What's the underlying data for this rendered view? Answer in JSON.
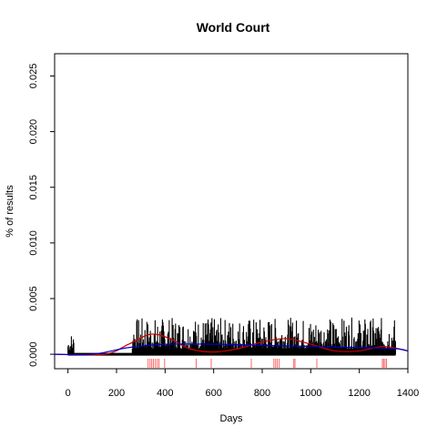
{
  "chart_data": {
    "type": "bar",
    "title": "World Court",
    "xlabel": "Days",
    "ylabel": "% of results",
    "xlim": [
      -55,
      1400
    ],
    "ylim": [
      -0.0013,
      0.027
    ],
    "x_ticks": [
      0,
      200,
      400,
      600,
      800,
      1000,
      1200,
      1400
    ],
    "x_tick_labels": [
      "0",
      "200",
      "400",
      "600",
      "800",
      "1000",
      "1200",
      "1400"
    ],
    "y_ticks": [
      0.0,
      0.005,
      0.01,
      0.015,
      0.02,
      0.025
    ],
    "y_tick_labels": [
      "0.000",
      "0.005",
      "0.010",
      "0.015",
      "0.020",
      "0.025"
    ],
    "grid": false,
    "legend": "none",
    "bar_clusters": [
      {
        "x_start": 0,
        "x_end": 25,
        "max": 0.002
      },
      {
        "x_start": 265,
        "x_end": 1350,
        "max": 0.0033
      }
    ],
    "series": [
      {
        "color": "#cc0000",
        "style": "smooth-line",
        "x": [
          -55,
          150,
          250,
          340,
          420,
          500,
          600,
          700,
          800,
          900,
          1000,
          1100,
          1200,
          1300,
          1400
        ],
        "y": [
          0.0,
          0.0,
          0.0009,
          0.0018,
          0.0014,
          0.0005,
          0.0002,
          0.0005,
          0.0011,
          0.0014,
          0.0009,
          0.0003,
          0.0003,
          0.0007,
          0.0003
        ]
      },
      {
        "color": "#0000cc",
        "style": "smooth-line",
        "x": [
          -55,
          100,
          250,
          400,
          600,
          800,
          1000,
          1200,
          1350,
          1400
        ],
        "y": [
          0.0,
          0.0,
          0.0006,
          0.0009,
          0.0009,
          0.0008,
          0.0007,
          0.0006,
          0.0005,
          0.0003
        ]
      }
    ],
    "rug": {
      "color": "#ff6666",
      "x": [
        330,
        338,
        345,
        352,
        360,
        368,
        375,
        398,
        528,
        590,
        755,
        848,
        855,
        862,
        870,
        930,
        935,
        1025,
        1295,
        1300,
        1306,
        1312
      ]
    }
  }
}
